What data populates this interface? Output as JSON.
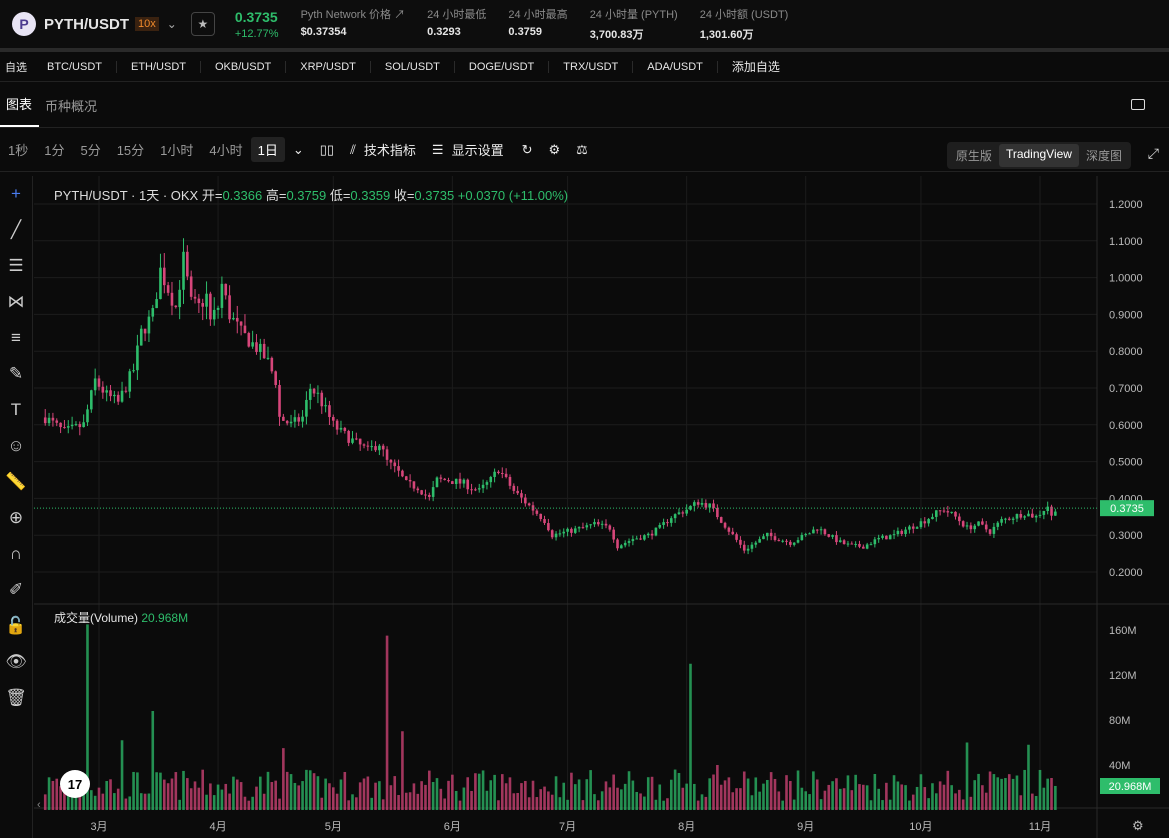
{
  "header": {
    "pair": "PYTH/USDT",
    "leverage": "10x",
    "price": "0.3735",
    "change": "+12.77%",
    "stats": [
      {
        "label": "Pyth Network 价格 ↗",
        "value": "$0.37354"
      },
      {
        "label": "24 小时最低",
        "value": "0.3293"
      },
      {
        "label": "24 小时最高",
        "value": "0.3759"
      },
      {
        "label": "24 小时量 (PYTH)",
        "value": "3,700.83万"
      },
      {
        "label": "24 小时额 (USDT)",
        "value": "1,301.60万"
      }
    ]
  },
  "favorites": [
    "自选",
    "BTC/USDT",
    "ETH/USDT",
    "OKB/USDT",
    "XRP/USDT",
    "SOL/USDT",
    "DOGE/USDT",
    "TRX/USDT",
    "ADA/USDT",
    "添加自选"
  ],
  "tabs": [
    "图表",
    "币种概况"
  ],
  "intervals": [
    "1秒",
    "1分",
    "5分",
    "15分",
    "1小时",
    "4小时",
    "1日"
  ],
  "toolbar": {
    "indicators": "技术指标",
    "display": "显示设置"
  },
  "views": [
    "原生版",
    "TradingView",
    "深度图"
  ],
  "legend": {
    "title": "PYTH/USDT · 1天 · OKX",
    "o_l": "开=",
    "o": "0.3366",
    "h_l": "高=",
    "h": "0.3759",
    "l_l": "低=",
    "l": "0.3359",
    "c_l": "收=",
    "c": "0.3735",
    "chg": "+0.0370 (+11.00%)"
  },
  "volume_legend": {
    "label": "成交量(Volume)",
    "value": "20.968M"
  },
  "chart_data": {
    "type": "candlestick",
    "price_ticks": [
      "1.2000",
      "1.1000",
      "1.0000",
      "0.9000",
      "0.8000",
      "0.7000",
      "0.6000",
      "0.5000",
      "0.4000",
      "0.3000",
      "0.2000"
    ],
    "ylim": [
      0.2,
      1.2
    ],
    "volume_ticks": [
      "160M",
      "120M",
      "80M",
      "40M"
    ],
    "vol_ylim": [
      0,
      160
    ],
    "x_ticks": [
      {
        "label": "3月",
        "day": 14
      },
      {
        "label": "4月",
        "day": 45
      },
      {
        "label": "5月",
        "day": 75
      },
      {
        "label": "6月",
        "day": 106
      },
      {
        "label": "7月",
        "day": 136
      },
      {
        "label": "8月",
        "day": 167
      },
      {
        "label": "9月",
        "day": 198
      },
      {
        "label": "10月",
        "day": 228
      },
      {
        "label": "11月",
        "day": 259
      }
    ],
    "last_price": "0.3735",
    "last_volume": "20.968M",
    "days": 264,
    "trend": [
      [
        0,
        0.62
      ],
      [
        5,
        0.58
      ],
      [
        10,
        0.6
      ],
      [
        13,
        0.72
      ],
      [
        16,
        0.68
      ],
      [
        19,
        0.66
      ],
      [
        23,
        0.75
      ],
      [
        25,
        0.85
      ],
      [
        28,
        0.9
      ],
      [
        30,
        1.02
      ],
      [
        32,
        0.97
      ],
      [
        34,
        0.92
      ],
      [
        36,
        1.05
      ],
      [
        38,
        0.93
      ],
      [
        40,
        0.92
      ],
      [
        42,
        0.95
      ],
      [
        43,
        0.88
      ],
      [
        45,
        0.92
      ],
      [
        46,
        0.98
      ],
      [
        48,
        0.9
      ],
      [
        51,
        0.85
      ],
      [
        54,
        0.82
      ],
      [
        56,
        0.8
      ],
      [
        58,
        0.77
      ],
      [
        60,
        0.72
      ],
      [
        61,
        0.62
      ],
      [
        64,
        0.6
      ],
      [
        67,
        0.62
      ],
      [
        69,
        0.7
      ],
      [
        71,
        0.68
      ],
      [
        75,
        0.6
      ],
      [
        77,
        0.58
      ],
      [
        81,
        0.55
      ],
      [
        84,
        0.53
      ],
      [
        87,
        0.55
      ],
      [
        89,
        0.5
      ],
      [
        92,
        0.47
      ],
      [
        94,
        0.44
      ],
      [
        97,
        0.43
      ],
      [
        100,
        0.4
      ],
      [
        102,
        0.45
      ],
      [
        105,
        0.45
      ],
      [
        109,
        0.44
      ],
      [
        113,
        0.42
      ],
      [
        116,
        0.45
      ],
      [
        118,
        0.48
      ],
      [
        120,
        0.45
      ],
      [
        122,
        0.42
      ],
      [
        126,
        0.38
      ],
      [
        130,
        0.34
      ],
      [
        132,
        0.3
      ],
      [
        136,
        0.31
      ],
      [
        140,
        0.32
      ],
      [
        143,
        0.33
      ],
      [
        147,
        0.32
      ],
      [
        149,
        0.27
      ],
      [
        153,
        0.29
      ],
      [
        157,
        0.3
      ],
      [
        160,
        0.32
      ],
      [
        163,
        0.35
      ],
      [
        167,
        0.37
      ],
      [
        170,
        0.39
      ],
      [
        173,
        0.38
      ],
      [
        176,
        0.34
      ],
      [
        179,
        0.3
      ],
      [
        182,
        0.26
      ],
      [
        185,
        0.28
      ],
      [
        188,
        0.3
      ],
      [
        191,
        0.29
      ],
      [
        194,
        0.28
      ],
      [
        198,
        0.3
      ],
      [
        201,
        0.32
      ],
      [
        204,
        0.3
      ],
      [
        207,
        0.28
      ],
      [
        210,
        0.27
      ],
      [
        213,
        0.27
      ],
      [
        217,
        0.29
      ],
      [
        221,
        0.3
      ],
      [
        225,
        0.32
      ],
      [
        229,
        0.34
      ],
      [
        232,
        0.36
      ],
      [
        234,
        0.37
      ],
      [
        237,
        0.35
      ],
      [
        240,
        0.32
      ],
      [
        243,
        0.33
      ],
      [
        246,
        0.31
      ],
      [
        249,
        0.34
      ],
      [
        252,
        0.35
      ],
      [
        255,
        0.36
      ],
      [
        258,
        0.35
      ],
      [
        260,
        0.37
      ],
      [
        261,
        0.38
      ],
      [
        262,
        0.35
      ],
      [
        263,
        0.3735
      ]
    ],
    "volume_spikes": [
      [
        11,
        165
      ],
      [
        20,
        62
      ],
      [
        28,
        88
      ],
      [
        62,
        55
      ],
      [
        89,
        155
      ],
      [
        93,
        70
      ],
      [
        168,
        130
      ],
      [
        175,
        40
      ],
      [
        240,
        60
      ],
      [
        256,
        58
      ]
    ],
    "colors": {
      "up": "#2ebd6b",
      "down": "#d6467a"
    }
  }
}
